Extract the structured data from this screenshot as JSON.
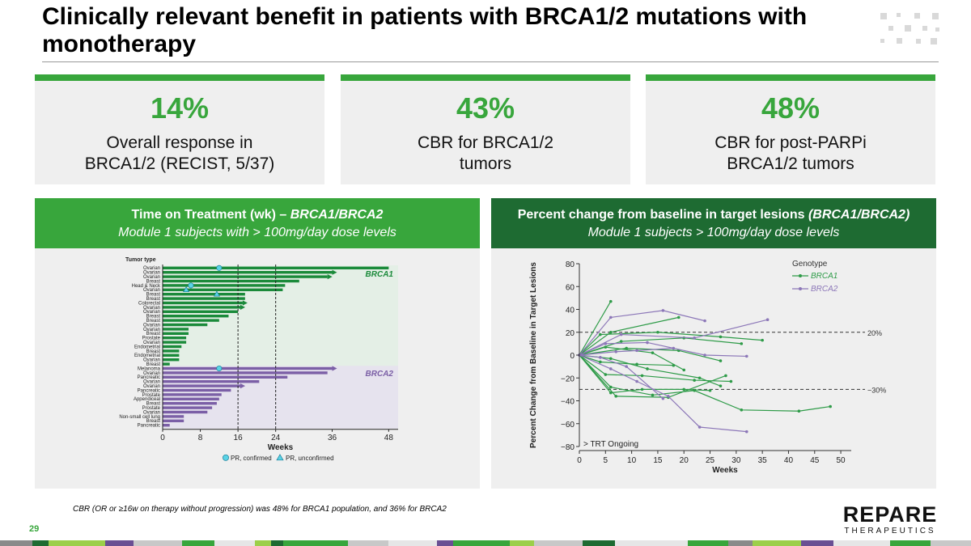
{
  "title": "Clinically relevant benefit in patients with BRCA1/2 mutations with monotherapy",
  "stats": [
    {
      "value": "14%",
      "line1": "Overall response in",
      "line2": "BRCA1/2 (RECIST, 5/37)"
    },
    {
      "value": "43%",
      "line1": "CBR for BRCA1/2",
      "line2": "tumors"
    },
    {
      "value": "48%",
      "line1": "CBR for post-PARPi",
      "line2": "BRCA1/2 tumors"
    }
  ],
  "left_panel": {
    "heading_plain": "Time on Treatment (wk) – ",
    "heading_italic": "BRCA1/BRCA2",
    "subheading": "Module 1 subjects with > 100mg/day dose levels"
  },
  "right_panel": {
    "heading_plain": "Percent change from baseline in target lesions ",
    "heading_italic": "(BRCA1/BRCA2)",
    "subheading": "Module 1 subjects > 100mg/day dose levels"
  },
  "footnote": "CBR (OR or ≥16w on therapy without progression) was 48% for BRCA1 population, and 36% for BRCA2",
  "page_number": "29",
  "brand": {
    "name": "REPARE",
    "sub": "THERAPEUTICS"
  },
  "colors": {
    "green": "#38a63c",
    "dark_green": "#1e6b32",
    "brca1": "#1a8a3a",
    "brca2": "#7b5fa6"
  },
  "chart_data": [
    {
      "type": "bar",
      "orientation": "horizontal",
      "title": "Time on Treatment (wk)",
      "y_title": "Tumor type",
      "xlabel": "Weeks",
      "xlim": [
        0,
        50
      ],
      "xticks": [
        0,
        8,
        16,
        24,
        36,
        48
      ],
      "reference_lines": [
        16,
        24
      ],
      "groups": [
        {
          "name": "BRCA1",
          "categories": [
            "Ovarian",
            "Ovarian",
            "Ovarian",
            "Breast",
            "Head & Neck",
            "Ovarian",
            "Breast",
            "Breast",
            "Colorectal",
            "Ovarian",
            "Ovarian",
            "Breast",
            "Breast",
            "Ovarian",
            "Ovarian",
            "Breast",
            "Prostate",
            "Ovarian",
            "Endometrial",
            "Breast",
            "Endometrial",
            "Ovarian",
            "Breast"
          ],
          "values": [
            48,
            36,
            35,
            29,
            26,
            25.5,
            17.5,
            17.5,
            17,
            16.5,
            16,
            14,
            12,
            9.5,
            5.5,
            5.5,
            5,
            5,
            4,
            3.5,
            3.5,
            3.5,
            1.5
          ],
          "ongoing": [
            false,
            true,
            true,
            false,
            false,
            false,
            false,
            false,
            true,
            true,
            false,
            false,
            false,
            false,
            false,
            false,
            false,
            false,
            false,
            false,
            false,
            false,
            false
          ]
        },
        {
          "name": "BRCA2",
          "categories": [
            "Melanoma",
            "Ovarian",
            "Pancreatic",
            "Ovarian",
            "Ovarian",
            "Pancreatic",
            "Prostate",
            "Appendiceal",
            "Breast",
            "Prostate",
            "Ovarian",
            "Non-small cell lung",
            "Breast",
            "Pancreatic"
          ],
          "values": [
            36,
            35,
            26.5,
            20.5,
            16.5,
            14.5,
            12.5,
            12,
            11.5,
            10.5,
            9.5,
            4.5,
            4.5,
            1.5
          ],
          "ongoing": [
            true,
            false,
            false,
            false,
            true,
            false,
            false,
            false,
            false,
            false,
            false,
            false,
            false,
            false
          ]
        }
      ],
      "markers": [
        {
          "group": "BRCA1",
          "row": 0,
          "week": 12,
          "kind": "PR, confirmed"
        },
        {
          "group": "BRCA1",
          "row": 4,
          "week": 6,
          "kind": "PR, confirmed"
        },
        {
          "group": "BRCA1",
          "row": 5,
          "week": 5,
          "kind": "PR, unconfirmed"
        },
        {
          "group": "BRCA1",
          "row": 6,
          "week": 11.5,
          "kind": "PR, unconfirmed"
        },
        {
          "group": "BRCA2",
          "row": 0,
          "week": 12,
          "kind": "PR, confirmed"
        }
      ],
      "legend": [
        "PR, confirmed",
        "PR, unconfirmed"
      ]
    },
    {
      "type": "line",
      "title": "Percent change from baseline in target lesions",
      "xlabel": "Weeks",
      "ylabel": "Percent Change from Baseline in Target Lesions",
      "xlim": [
        0,
        52
      ],
      "ylim": [
        -80,
        80
      ],
      "xticks": [
        0,
        5,
        10,
        15,
        20,
        25,
        30,
        35,
        40,
        45,
        50
      ],
      "yticks": [
        -80,
        -60,
        -40,
        -20,
        0,
        20,
        40,
        60,
        80
      ],
      "threshold_lines": [
        {
          "y": 20,
          "label": "20%"
        },
        {
          "y": -30,
          "label": "−30%"
        }
      ],
      "legend_title": "Genotype",
      "legend": [
        "BRCA1",
        "BRCA2"
      ],
      "note": "> TRT Ongoing",
      "series": [
        {
          "name": "BRCA1",
          "x": [
            0,
            6
          ],
          "y": [
            0,
            47
          ]
        },
        {
          "name": "BRCA1",
          "x": [
            0,
            6,
            19
          ],
          "y": [
            0,
            20,
            33
          ]
        },
        {
          "name": "BRCA1",
          "x": [
            0,
            4,
            15,
            27,
            35
          ],
          "y": [
            0,
            18,
            20,
            16,
            13
          ]
        },
        {
          "name": "BRCA1",
          "x": [
            0,
            8,
            20,
            31
          ],
          "y": [
            0,
            12,
            15,
            10
          ]
        },
        {
          "name": "BRCA1",
          "x": [
            0,
            9,
            19,
            27
          ],
          "y": [
            0,
            6,
            4,
            -5
          ]
        },
        {
          "name": "BRCA1",
          "x": [
            0,
            6,
            13,
            23,
            27
          ],
          "y": [
            0,
            -3,
            -12,
            -20,
            -27
          ]
        },
        {
          "name": "BRCA1",
          "x": [
            0,
            5,
            12,
            22,
            29
          ],
          "y": [
            0,
            -17,
            -18,
            -22,
            -23
          ]
        },
        {
          "name": "BRCA1",
          "x": [
            0,
            6,
            14,
            22,
            31,
            42,
            48
          ],
          "y": [
            0,
            -28,
            -35,
            -31,
            -48,
            -49,
            -45
          ]
        },
        {
          "name": "BRCA1",
          "x": [
            0,
            6,
            12,
            20,
            25
          ],
          "y": [
            0,
            -33,
            -30,
            -30,
            -31
          ]
        },
        {
          "name": "BRCA1",
          "x": [
            0,
            7,
            17,
            28
          ],
          "y": [
            0,
            -36,
            -37,
            -18
          ]
        },
        {
          "name": "BRCA1",
          "x": [
            0,
            5,
            14,
            20
          ],
          "y": [
            0,
            7,
            2,
            -13
          ]
        },
        {
          "name": "BRCA1",
          "x": [
            0,
            4,
            11,
            18
          ],
          "y": [
            0,
            -6,
            -8,
            -9
          ]
        },
        {
          "name": "BRCA2",
          "x": [
            0,
            6,
            16,
            24
          ],
          "y": [
            0,
            33,
            39,
            30
          ]
        },
        {
          "name": "BRCA2",
          "x": [
            0,
            8,
            22,
            36
          ],
          "y": [
            0,
            18,
            15,
            31
          ]
        },
        {
          "name": "BRCA2",
          "x": [
            0,
            5,
            13,
            24,
            32
          ],
          "y": [
            0,
            10,
            11,
            0,
            -1
          ]
        },
        {
          "name": "BRCA2",
          "x": [
            0,
            7,
            11,
            18
          ],
          "y": [
            0,
            3,
            4,
            6
          ]
        },
        {
          "name": "BRCA2",
          "x": [
            0,
            6,
            11,
            17,
            23,
            32
          ],
          "y": [
            0,
            -12,
            -23,
            -36,
            -63,
            -67
          ]
        },
        {
          "name": "BRCA2",
          "x": [
            0,
            4,
            9,
            16
          ],
          "y": [
            0,
            -2,
            -10,
            -38
          ]
        }
      ]
    }
  ]
}
